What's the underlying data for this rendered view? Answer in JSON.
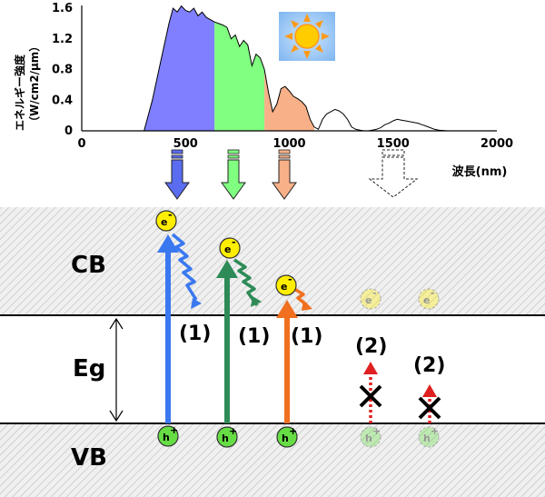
{
  "chart": {
    "ylabel_line1": "エネルギー強度",
    "ylabel_line2": "（W/cm2/μm）",
    "xlabel": "波長(nm)",
    "x_ticks": [
      "0",
      "500",
      "1000",
      "1500",
      "2000"
    ],
    "y_ticks": [
      "0",
      "0.4",
      "0.8",
      "1.2",
      "1.6"
    ],
    "xlim": [
      0,
      2000
    ],
    "ylim": [
      0,
      1.6
    ],
    "colors": {
      "blue": "#7f7fff",
      "green": "#80ff80",
      "orange": "#f8b088"
    }
  },
  "chart_data": {
    "type": "area",
    "xlabel": "波長(nm)",
    "ylabel": "エネルギー強度（W/cm2/μm）",
    "xlim": [
      0,
      2000
    ],
    "ylim": [
      0,
      1.6
    ],
    "grid": false,
    "x": [
      300,
      340,
      380,
      420,
      440,
      460,
      480,
      500,
      520,
      540,
      560,
      580,
      600,
      620,
      640,
      660,
      680,
      700,
      720,
      740,
      760,
      780,
      800,
      820,
      840,
      860,
      880,
      900,
      920,
      940,
      960,
      980,
      1000,
      1020,
      1040,
      1060,
      1080,
      1100,
      1120,
      1140,
      1160,
      1180,
      1200,
      1220,
      1240,
      1260,
      1280,
      1300,
      1320,
      1340,
      1360,
      1380,
      1400,
      1420,
      1440,
      1460,
      1480,
      1500,
      1520,
      1540,
      1560,
      1580,
      1600,
      1620,
      1640,
      1660,
      1680,
      1700,
      1720,
      1740,
      1760,
      1780,
      1800,
      1820,
      1840,
      1860,
      1880,
      1900,
      1920,
      1940,
      1960,
      1980,
      2000
    ],
    "y": [
      0.0,
      0.4,
      0.9,
      1.4,
      1.6,
      1.55,
      1.63,
      1.57,
      1.55,
      1.6,
      1.5,
      1.55,
      1.48,
      1.45,
      1.42,
      1.4,
      1.38,
      1.35,
      1.2,
      1.25,
      1.1,
      1.18,
      1.12,
      0.85,
      1.0,
      0.95,
      0.8,
      0.5,
      0.25,
      0.35,
      0.55,
      0.58,
      0.52,
      0.45,
      0.42,
      0.38,
      0.32,
      0.15,
      0.05,
      0.02,
      0.15,
      0.22,
      0.25,
      0.28,
      0.26,
      0.22,
      0.15,
      0.05,
      0.02,
      0.01,
      0.0,
      0.0,
      0.01,
      0.02,
      0.04,
      0.08,
      0.1,
      0.13,
      0.15,
      0.14,
      0.13,
      0.12,
      0.11,
      0.1,
      0.08,
      0.06,
      0.04,
      0.02,
      0.01,
      0.005,
      0.0,
      0.0,
      0.0,
      0.0,
      0.0,
      0.0,
      0.0,
      0.0,
      0.0,
      0.0,
      0.0,
      0.0,
      0.0
    ],
    "fill_regions": [
      {
        "from": 300,
        "to": 640,
        "color": "#7f7fff"
      },
      {
        "from": 640,
        "to": 880,
        "color": "#80ff80"
      },
      {
        "from": 880,
        "to": 1130,
        "color": "#f8b088"
      }
    ]
  },
  "bands": {
    "cb": "CB",
    "vb": "VB",
    "eg": "Eg"
  },
  "carriers": {
    "electron": "e",
    "electron_sup": "-",
    "hole": "h",
    "hole_sup": "+"
  },
  "steps": {
    "absorbed": "(1)",
    "not_absorbed": "(2)"
  },
  "colors": {
    "blue_path": "#3a78f0",
    "green_path": "#2e8b57",
    "orange_path": "#f07020",
    "red_path": "#e02020",
    "electron_fill": "#ffee00",
    "hole_fill": "#66dd44"
  }
}
